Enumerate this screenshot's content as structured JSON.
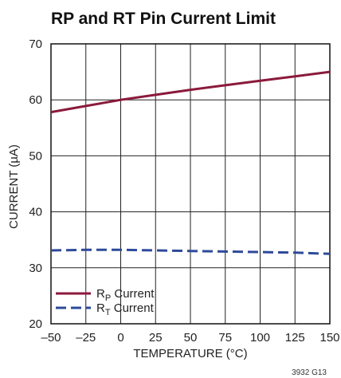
{
  "chart_data": {
    "type": "line",
    "title": "RP and RT Pin Current Limit",
    "xlabel": "TEMPERATURE (°C)",
    "ylabel": "CURRENT (µA)",
    "xlim": [
      -50,
      150
    ],
    "ylim": [
      20,
      70
    ],
    "xticks": [
      "–50",
      "–25",
      "0",
      "25",
      "50",
      "75",
      "100",
      "125",
      "150"
    ],
    "yticks": [
      "20",
      "30",
      "40",
      "50",
      "60",
      "70"
    ],
    "grid": true,
    "legend_position": "bottom-left",
    "series": [
      {
        "name": "RP Current",
        "label_main": "R",
        "label_sub": "P",
        "label_rest": " Current",
        "color": "#8b1a3c",
        "style": "solid",
        "x": [
          -50,
          -25,
          0,
          25,
          50,
          75,
          100,
          125,
          150
        ],
        "y": [
          57.8,
          58.9,
          60.0,
          60.9,
          61.8,
          62.6,
          63.4,
          64.2,
          65.0
        ]
      },
      {
        "name": "RT Current",
        "label_main": "R",
        "label_sub": "T",
        "label_rest": " Current",
        "color": "#2e4a9a",
        "style": "dashed",
        "x": [
          -50,
          -25,
          0,
          25,
          50,
          75,
          100,
          125,
          150
        ],
        "y": [
          33.1,
          33.2,
          33.2,
          33.1,
          33.0,
          32.9,
          32.8,
          32.7,
          32.5
        ]
      }
    ],
    "figure_code": "3932 G13"
  }
}
